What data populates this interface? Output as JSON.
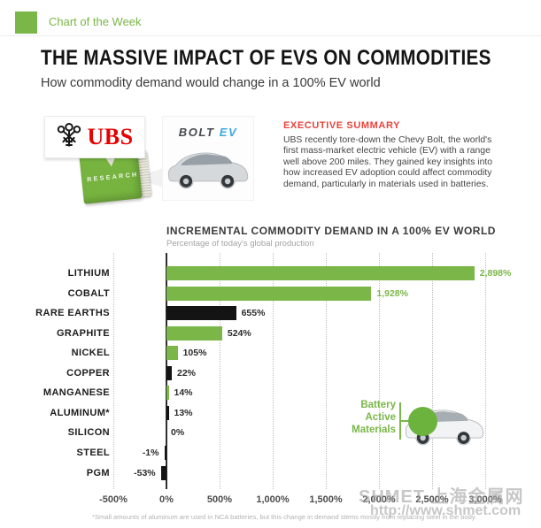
{
  "header": {
    "badge": "Chart of the Week"
  },
  "title": "THE MASSIVE IMPACT OF EVS ON COMMODITIES",
  "subtitle": "How commodity demand would change in a 100% EV world",
  "source_panel": {
    "ubs_wordmark": "UBS",
    "research_label": "RESEARCH",
    "bolt_wordmark": "BOLT",
    "ev_wordmark": "EV"
  },
  "executive_summary": {
    "heading": "EXECUTIVE SUMMARY",
    "body": "UBS recently tore-down the Chevy Bolt, the world's first mass-market electric vehicle (EV) with a range well above 200 miles. They gained key insights into how increased EV adoption could affect commodity demand, particularly in materials used in batteries."
  },
  "callout": {
    "lines": [
      "Battery",
      "Active",
      "Materials"
    ]
  },
  "footnote": "*Small amounts of aluminum are used in NCA batteries, but this change in demand stems mostly from replacing steel in the body.",
  "watermark": {
    "line1": "SHMET 上海金属网",
    "line2": "http://www.shmet.com"
  },
  "chart_data": {
    "type": "bar",
    "orientation": "horizontal",
    "title": "INCREMENTAL COMMODITY DEMAND IN A 100% EV WORLD",
    "subtitle": "Percentage of today's global production",
    "categories": [
      "LITHIUM",
      "COBALT",
      "RARE EARTHS",
      "GRAPHITE",
      "NICKEL",
      "COPPER",
      "MANGANESE",
      "ALUMINUM*",
      "SILICON",
      "STEEL",
      "PGM"
    ],
    "values": [
      2898,
      1928,
      655,
      524,
      105,
      22,
      14,
      13,
      0,
      -1,
      -53
    ],
    "value_labels": [
      "2,898%",
      "1,928%",
      "655%",
      "524%",
      "105%",
      "22%",
      "14%",
      "13%",
      "0%",
      "-1%",
      "-53%"
    ],
    "bar_colors": [
      "green",
      "green",
      "black",
      "green",
      "green",
      "black",
      "green",
      "black",
      "none",
      "black",
      "black"
    ],
    "value_label_colors": [
      "green",
      "green",
      "black",
      "black",
      "black",
      "black",
      "black",
      "black",
      "black",
      "black",
      "black"
    ],
    "x_ticks": {
      "values": [
        -500,
        0,
        500,
        1000,
        1500,
        2000,
        2500,
        3000
      ],
      "labels": [
        "-500%",
        "0%",
        "500%",
        "1,000%",
        "1,500%",
        "2,000%",
        "2,500%",
        "3,000%"
      ]
    },
    "xlim": [
      -500,
      3100
    ],
    "grid": "vertical-dotted",
    "legend": null,
    "colors": {
      "green": "#7ab648",
      "black": "#141414",
      "axis": "#2e2e2e",
      "grid": "#bdbdbd"
    }
  }
}
